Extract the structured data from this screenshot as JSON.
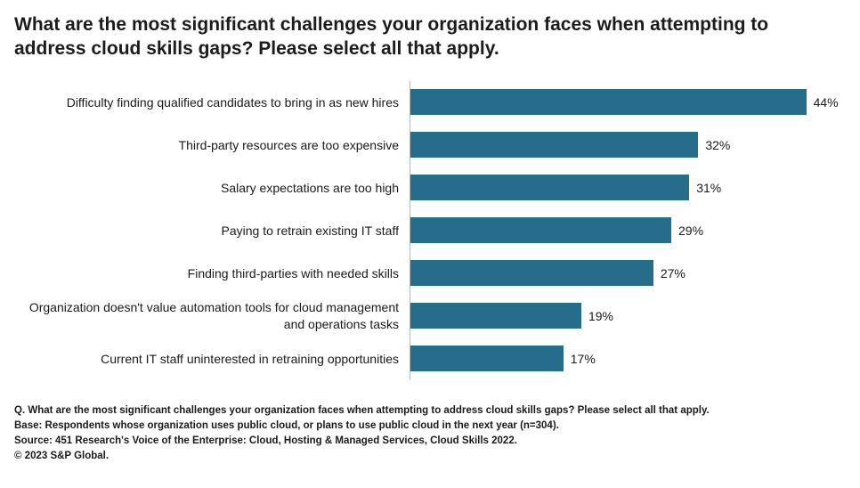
{
  "title": "What are the most significant challenges your organization faces when attempting to address cloud skills gaps? Please select all that apply.",
  "chart_data": {
    "type": "bar",
    "orientation": "horizontal",
    "title": "What are the most significant challenges your organization faces when attempting to address cloud skills gaps? Please select all that apply.",
    "categories": [
      "Difficulty finding qualified candidates to bring in as new hires",
      "Third-party resources are too expensive",
      "Salary expectations are too high",
      "Paying to retrain existing IT staff",
      "Finding third-parties with needed skills",
      "Organization doesn't value automation tools for cloud management and operations tasks",
      "Current IT staff uninterested in retraining opportunities"
    ],
    "values": [
      44,
      32,
      31,
      29,
      27,
      19,
      17
    ],
    "value_suffix": "%",
    "xlim": [
      0,
      48
    ],
    "grid": false,
    "legend": false,
    "bar_color": "#266d8c"
  },
  "footer": {
    "lines": [
      "Q. What are the most significant challenges your organization faces when attempting to address cloud skills gaps? Please select all that apply.",
      "Base: Respondents whose organization uses public cloud, or plans to use public cloud in the next year (n=304).",
      "Source: 451 Research's Voice of the Enterprise: Cloud, Hosting & Managed Services, Cloud Skills 2022.",
      "© 2023 S&P Global."
    ]
  }
}
